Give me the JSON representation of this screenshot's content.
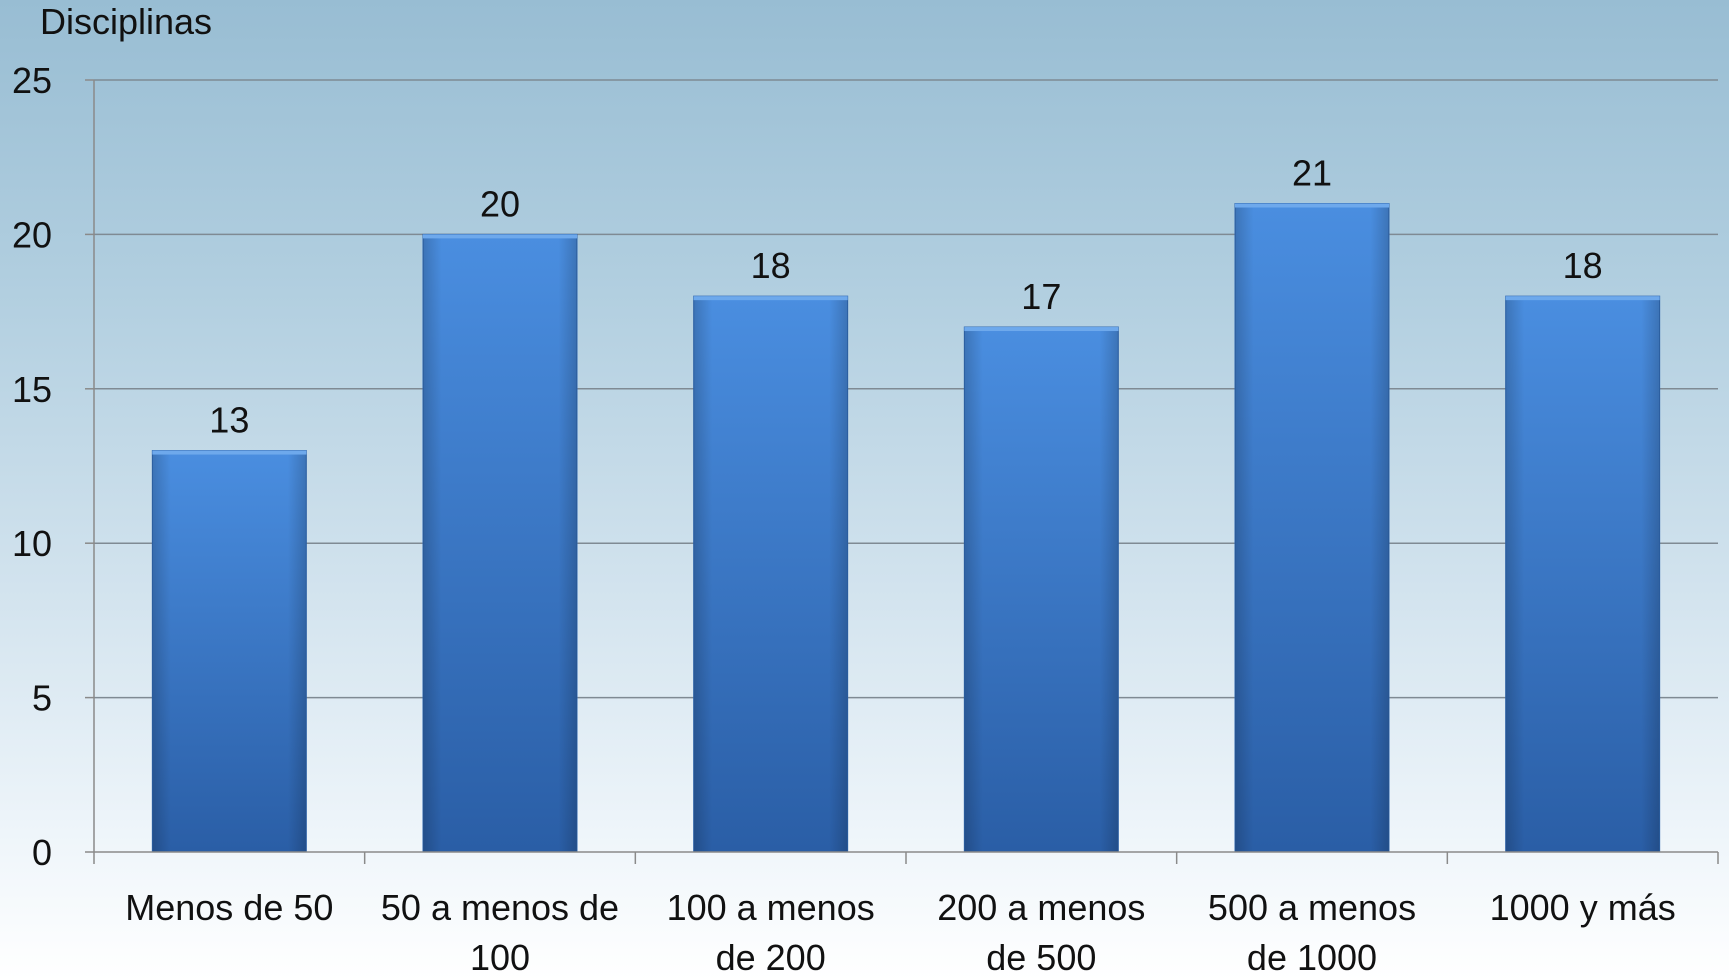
{
  "chart_data": {
    "type": "bar",
    "title": "",
    "ylabel": "Disciplinas",
    "xlabel": "",
    "categories": [
      [
        "Menos de 50"
      ],
      [
        "50 a menos de",
        "100"
      ],
      [
        "100 a menos",
        "de 200"
      ],
      [
        "200 a menos",
        "de 500"
      ],
      [
        "500 a menos",
        "de 1000"
      ],
      [
        "1000 y más"
      ]
    ],
    "values": [
      13,
      20,
      18,
      17,
      21,
      18
    ],
    "ylim": [
      0,
      25
    ],
    "yticks": [
      0,
      5,
      10,
      15,
      20,
      25
    ],
    "grid": true,
    "legend": "none",
    "colors": {
      "bar_light": "#4a8ee0",
      "bar_dark": "#2a5ea6",
      "gridline": "#7f8a93",
      "axis": "#8a8a8a"
    }
  }
}
